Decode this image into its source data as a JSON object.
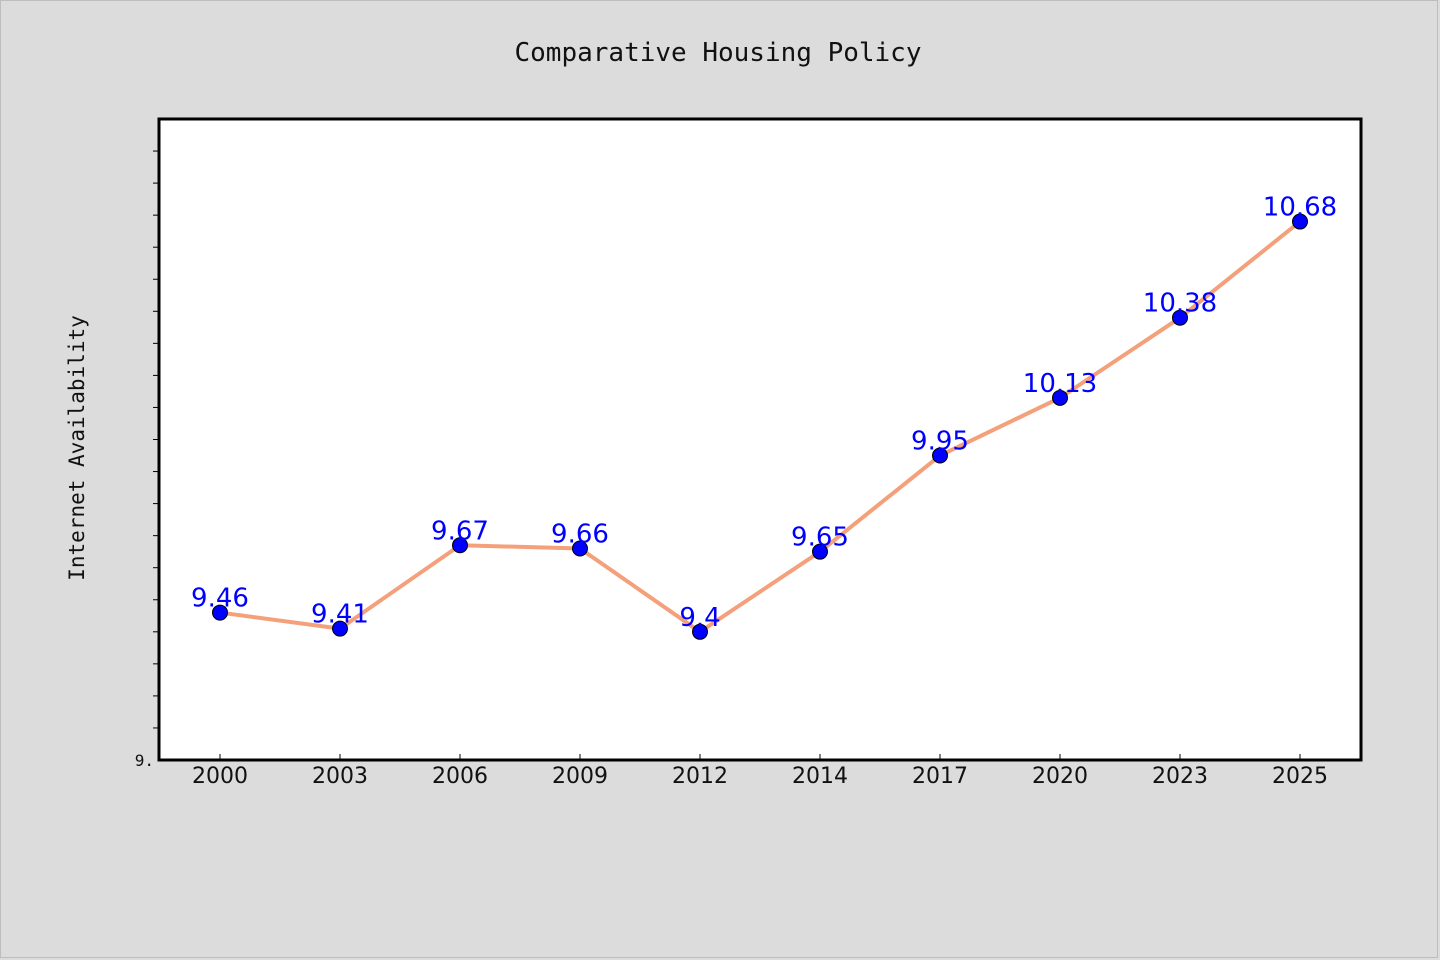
{
  "chart_data": {
    "type": "line",
    "title": "Comparative Housing Policy",
    "xlabel": "",
    "ylabel": "Internet Availability",
    "categories": [
      "2000",
      "2003",
      "2006",
      "2009",
      "2012",
      "2014",
      "2017",
      "2020",
      "2023",
      "2025"
    ],
    "series": [
      {
        "values": [
          9.46,
          9.41,
          9.67,
          9.66,
          9.4,
          9.65,
          9.95,
          10.13,
          10.38,
          10.68
        ],
        "data_labels": [
          "9.46",
          "9.41",
          "9.67",
          "9.66",
          "9.4",
          "9.65",
          "9.95",
          "10.13",
          "10.38",
          "10.68"
        ]
      }
    ],
    "ylim": [
      9.0,
      11.0
    ],
    "y_tick_labels": [
      "9."
    ],
    "grid": false,
    "colors": {
      "line": "#f4a07a",
      "marker": "#0000ff",
      "data_label": "#0000ff",
      "plot_background": "#ffffff",
      "figure_background": "#dcdcdc"
    }
  }
}
